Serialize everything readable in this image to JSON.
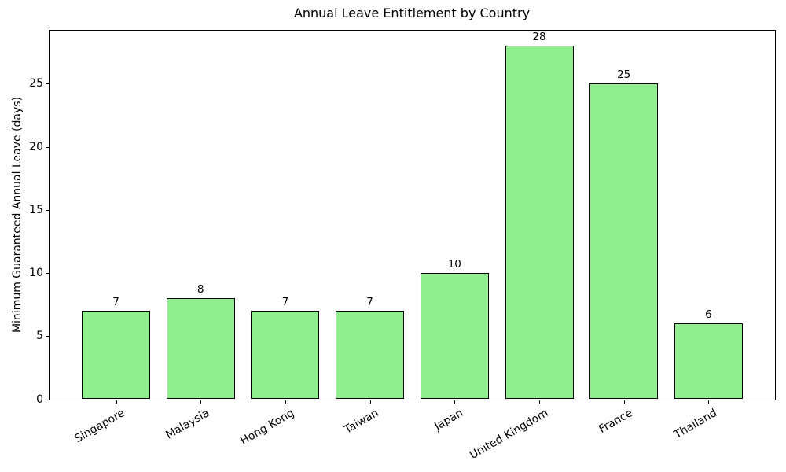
{
  "chart_data": {
    "type": "bar",
    "title": "Annual Leave Entitlement by Country",
    "xlabel": "",
    "ylabel": "Minimum Guaranteed Annual Leave (days)",
    "categories": [
      "Singapore",
      "Malaysia",
      "Hong Kong",
      "Taiwan",
      "Japan",
      "United Kingdom",
      "France",
      "Thailand"
    ],
    "values": [
      7,
      8,
      7,
      7,
      10,
      28,
      25,
      6
    ],
    "bar_labels": [
      "7",
      "8",
      "7",
      "7",
      "10",
      "28",
      "25",
      "6"
    ],
    "yticks": [
      0,
      5,
      10,
      15,
      20,
      25
    ],
    "ylim": [
      0,
      29.3
    ],
    "x_tick_rotation_deg": 30,
    "grid": false,
    "legend": "none",
    "bar_color": "#90ee90",
    "bar_edge_color": "#000000",
    "text_color": "#000000",
    "background_color": "#ffffff"
  }
}
